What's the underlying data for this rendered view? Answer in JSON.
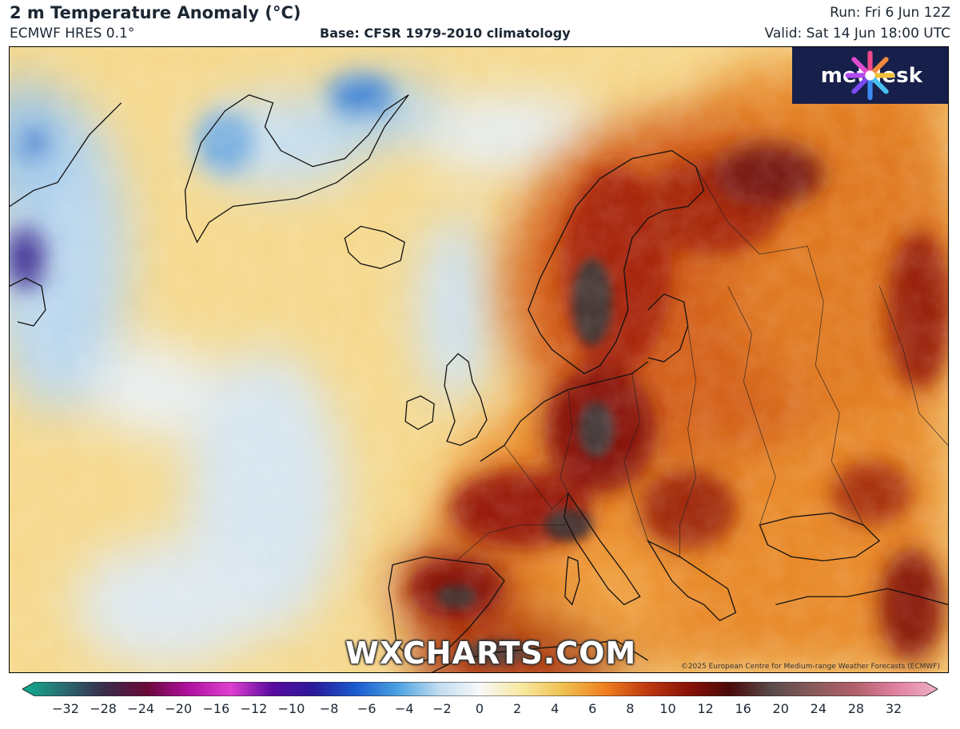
{
  "header": {
    "title": "2 m Temperature Anomaly (°C)",
    "model": "ECMWF HRES 0.1°",
    "base": "Base: CFSR 1979-2010 climatology",
    "run": "Run: Fri 6 Jun 12Z",
    "valid": "Valid: Sat 14 Jun 18:00 UTC"
  },
  "logo": {
    "name": "metdesk",
    "icon": "metdesk-burst-icon",
    "background": "#17204a"
  },
  "watermark": "WXCHARTS.COM",
  "copyright": "©2025 European Centre for Medium-range Weather Forecasts (ECMWF)",
  "colorbar": {
    "ticks": [
      "−32",
      "−28",
      "−24",
      "−20",
      "−16",
      "−12",
      "−10",
      "−8",
      "−6",
      "−4",
      "−2",
      "0",
      "2",
      "4",
      "6",
      "8",
      "10",
      "12",
      "16",
      "20",
      "24",
      "28",
      "32"
    ],
    "colors": [
      "#10b090",
      "#2a6a70",
      "#3a2a4a",
      "#6a0a3a",
      "#b010a0",
      "#e040d0",
      "#5a0aa0",
      "#2a1a9a",
      "#1a5ad0",
      "#4aa0e0",
      "#c0dcf0",
      "#f8f8f8",
      "#f8e8a0",
      "#f0c050",
      "#f08020",
      "#c03a10",
      "#8a1208",
      "#4a0a0a",
      "#5a4a4a",
      "#8a5a5a",
      "#b0606a",
      "#e080a0",
      "#f0b0c8"
    ]
  }
}
